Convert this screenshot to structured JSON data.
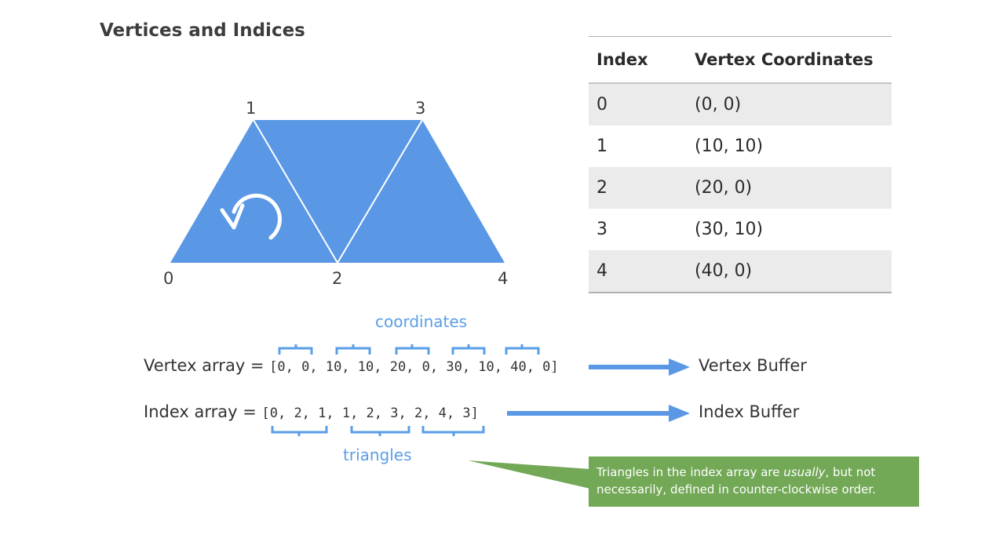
{
  "title": "Vertices and Indices",
  "vertex_labels": [
    "0",
    "1",
    "2",
    "3",
    "4"
  ],
  "table": {
    "headers": [
      "Index",
      "Vertex Coordinates"
    ],
    "rows": [
      {
        "index": "0",
        "coords": "(0, 0)"
      },
      {
        "index": "1",
        "coords": "(10, 10)"
      },
      {
        "index": "2",
        "coords": "(20, 0)"
      },
      {
        "index": "3",
        "coords": "(30, 10)"
      },
      {
        "index": "4",
        "coords": "(40, 0)"
      }
    ]
  },
  "coordinates_label": "coordinates",
  "triangles_label": "triangles",
  "vertex_array": {
    "prefix": "Vertex array = ",
    "values": "[0, 0, 10, 10, 20, 0, 30, 10, 40, 0]"
  },
  "index_array": {
    "prefix": "Index array = ",
    "values": "[0, 2, 1, 1, 2, 3, 2, 4, 3]"
  },
  "vertex_buffer_label": "Vertex Buffer",
  "index_buffer_label": "Index Buffer",
  "note": {
    "text_before": "Triangles in the index array are ",
    "emphasis": "usually",
    "text_after": ", but not necessarily, defined in counter-clockwise order."
  },
  "colors": {
    "triangle": "#5a97e5",
    "accent": "#5a9ee8",
    "note_bg": "#72a856"
  }
}
